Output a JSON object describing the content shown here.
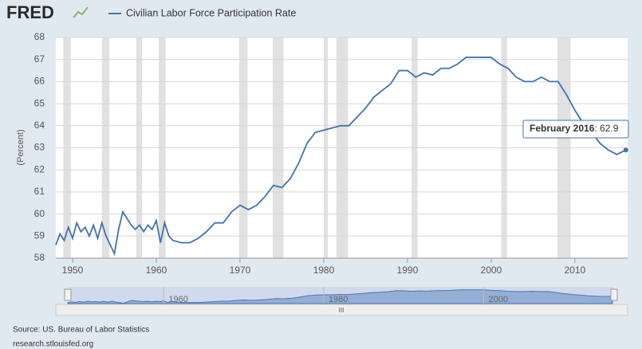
{
  "logo": "FRED",
  "chart_data": {
    "type": "line",
    "title": "Civilian Labor Force Participation Rate",
    "y_label": "(Percent)",
    "series": [
      {
        "name": "Civilian Labor Force Participation Rate",
        "color": "#4572a7",
        "x": [
          1948.0,
          1948.5,
          1949.0,
          1949.5,
          1950.0,
          1950.5,
          1951.0,
          1951.5,
          1952.0,
          1952.5,
          1953.0,
          1953.5,
          1954.0,
          1954.5,
          1955.0,
          1955.5,
          1956.0,
          1956.5,
          1957.0,
          1957.5,
          1958.0,
          1958.5,
          1959.0,
          1959.5,
          1960.0,
          1960.5,
          1961.0,
          1961.5,
          1962.0,
          1963.0,
          1964.0,
          1965.0,
          1966.0,
          1967.0,
          1968.0,
          1969.0,
          1970.0,
          1971.0,
          1972.0,
          1973.0,
          1974.0,
          1975.0,
          1976.0,
          1977.0,
          1978.0,
          1979.0,
          1980.0,
          1981.0,
          1982.0,
          1983.0,
          1984.0,
          1985.0,
          1986.0,
          1987.0,
          1988.0,
          1989.0,
          1990.0,
          1991.0,
          1992.0,
          1993.0,
          1994.0,
          1995.0,
          1996.0,
          1997.0,
          1998.0,
          1999.0,
          2000.0,
          2001.0,
          2002.0,
          2003.0,
          2004.0,
          2005.0,
          2006.0,
          2007.0,
          2008.0,
          2009.0,
          2010.0,
          2011.0,
          2012.0,
          2013.0,
          2014.0,
          2015.0,
          2016.08
        ],
        "values": [
          58.6,
          59.1,
          58.8,
          59.4,
          58.9,
          59.6,
          59.2,
          59.4,
          59.0,
          59.5,
          58.9,
          59.6,
          59.0,
          58.6,
          58.2,
          59.3,
          60.1,
          59.8,
          59.5,
          59.3,
          59.5,
          59.2,
          59.5,
          59.3,
          59.7,
          58.7,
          59.6,
          59.0,
          58.8,
          58.7,
          58.7,
          58.9,
          59.2,
          59.6,
          59.6,
          60.1,
          60.4,
          60.2,
          60.4,
          60.8,
          61.3,
          61.2,
          61.6,
          62.3,
          63.2,
          63.7,
          63.8,
          63.9,
          64.0,
          64.0,
          64.4,
          64.8,
          65.3,
          65.6,
          65.9,
          66.5,
          66.5,
          66.2,
          66.4,
          66.3,
          66.6,
          66.6,
          66.8,
          67.1,
          67.1,
          67.1,
          67.1,
          66.8,
          66.6,
          66.2,
          66.0,
          66.0,
          66.2,
          66.0,
          66.0,
          65.4,
          64.7,
          64.1,
          63.7,
          63.2,
          62.9,
          62.7,
          62.9
        ]
      }
    ],
    "recessions": [
      [
        1948.9,
        1949.8
      ],
      [
        1953.5,
        1954.4
      ],
      [
        1957.6,
        1958.3
      ],
      [
        1960.3,
        1961.1
      ],
      [
        1969.9,
        1970.9
      ],
      [
        1973.9,
        1975.2
      ],
      [
        1980.0,
        1980.5
      ],
      [
        1981.5,
        1982.9
      ],
      [
        1990.5,
        1991.2
      ],
      [
        2001.2,
        2001.9
      ],
      [
        2007.9,
        2009.5
      ]
    ],
    "xlim": [
      1948,
      2016.3
    ],
    "xticks": [
      1950,
      1960,
      1970,
      1980,
      1990,
      2000,
      2010
    ],
    "ylim": [
      58,
      68
    ],
    "yticks": [
      58,
      59,
      60,
      61,
      62,
      63,
      64,
      65,
      66,
      67,
      68
    ],
    "grid": true,
    "tooltip": {
      "label": "February 2016",
      "value": 62.9
    },
    "navigator_xticks": [
      1960,
      1980,
      2000
    ]
  },
  "source": "Source: US. Bureau of Labor Statistics",
  "url": "research.stlouisfed.org"
}
